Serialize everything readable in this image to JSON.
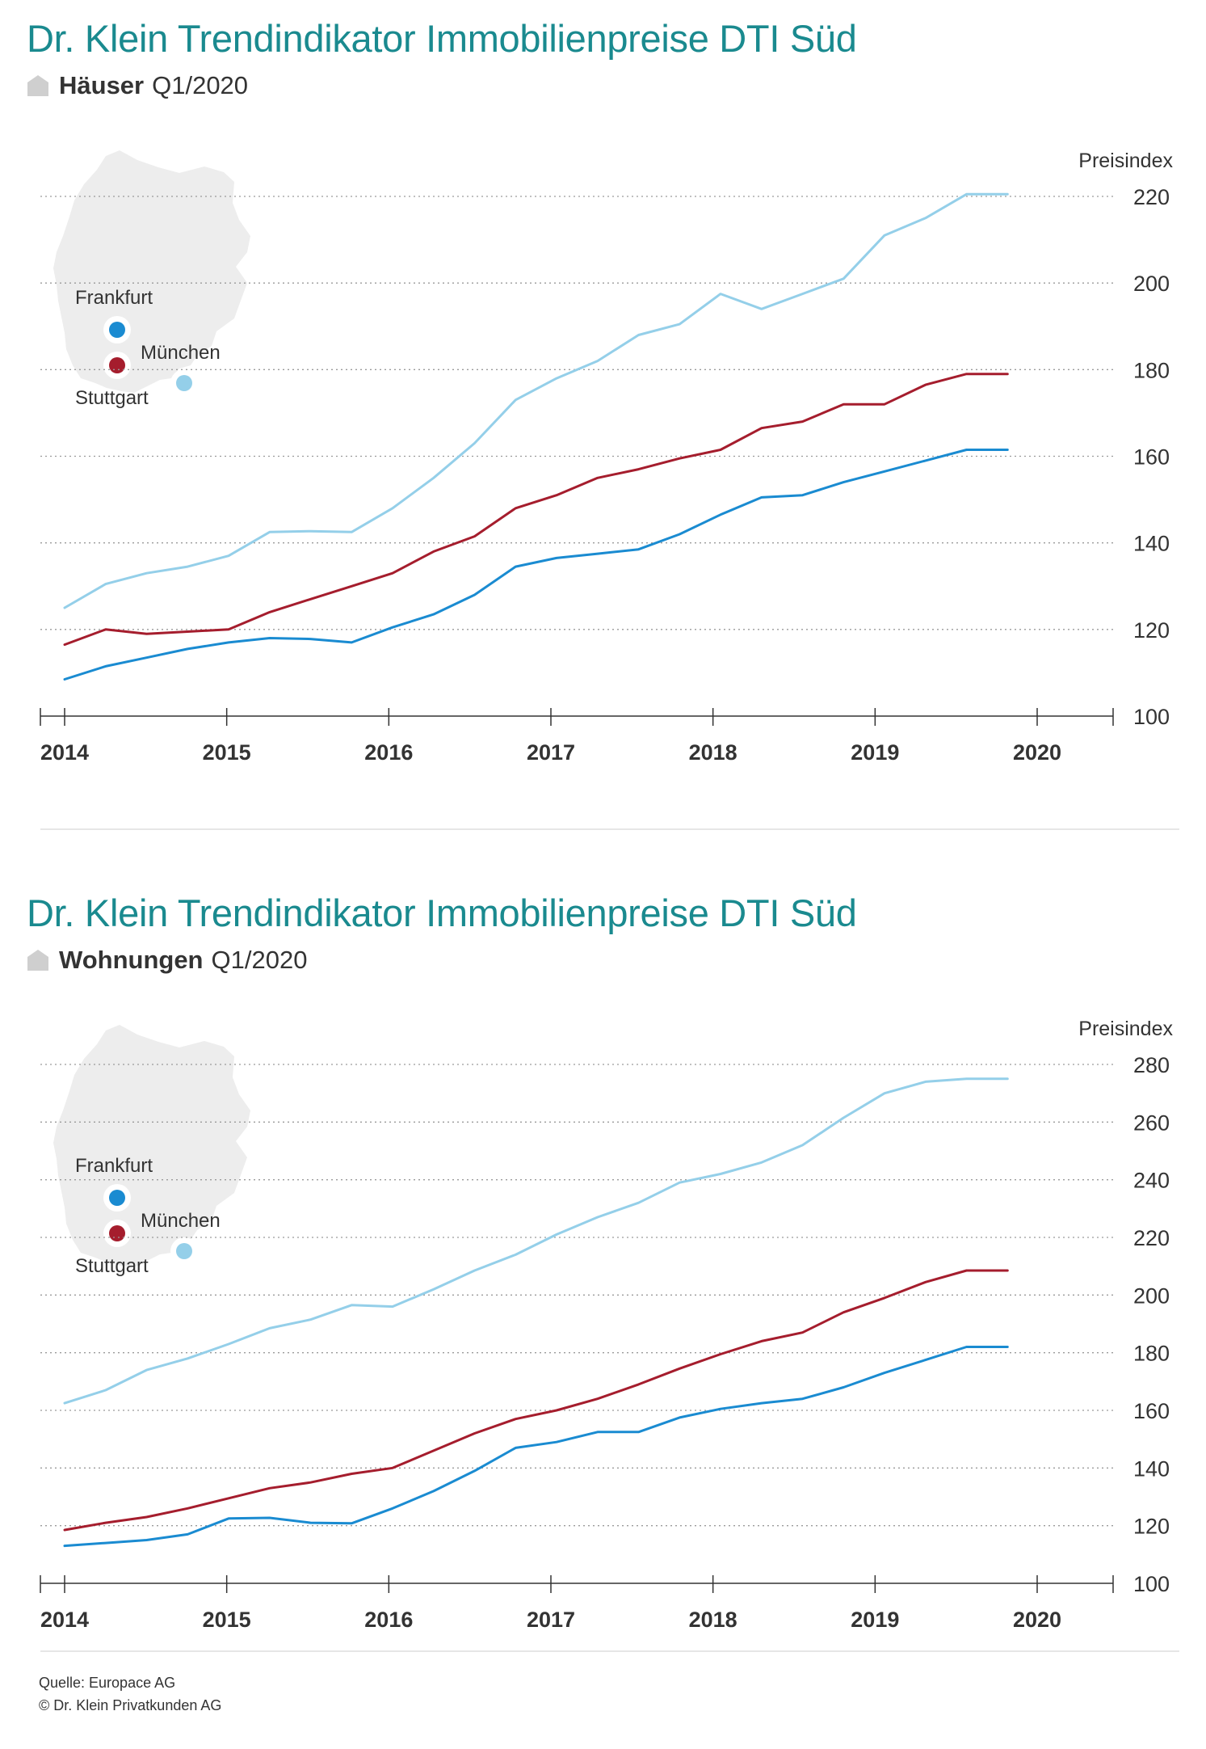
{
  "colors": {
    "title": "#1a8a8f",
    "frankfurt": "#1a8bd1",
    "muenchen": "#a51d2d",
    "stuttgart": "#94cfe9",
    "map": "#ededed",
    "grid": "#9a9a9a"
  },
  "charts": [
    {
      "title": "Dr. Klein Trendindikator Immobilienpreise DTI Süd",
      "subtitle_bold": "Häuser",
      "subtitle_rest": "Q1/2020",
      "house_icon": "house-icon",
      "map_labels": {
        "frankfurt": "Frankfurt",
        "muenchen": "München",
        "stuttgart": "Stuttgart"
      }
    },
    {
      "title": "Dr. Klein Trendindikator Immobilienpreise DTI Süd",
      "subtitle_bold": "Wohnungen",
      "subtitle_rest": "Q1/2020",
      "house_icon": "house-icon",
      "map_labels": {
        "frankfurt": "Frankfurt",
        "muenchen": "München",
        "stuttgart": "Stuttgart"
      }
    }
  ],
  "chart_data": [
    {
      "type": "line",
      "title": "Dr. Klein Trendindikator Immobilienpreise DTI Süd",
      "subtitle": "Häuser Q1/2020",
      "ylabel": "Preisindex",
      "ylim": [
        100,
        220
      ],
      "yticks": [
        "100",
        "120",
        "140",
        "160",
        "180",
        "200",
        "220"
      ],
      "xticks": [
        "2014",
        "2015",
        "2016",
        "2017",
        "2018",
        "2019",
        "2020"
      ],
      "xlim": [
        2014.0,
        2020.5
      ],
      "grid": true,
      "x": [
        2014.0,
        2014.25,
        2014.5,
        2014.75,
        2015.0,
        2015.25,
        2015.5,
        2015.75,
        2016.0,
        2016.25,
        2016.5,
        2016.75,
        2017.0,
        2017.25,
        2017.5,
        2017.75,
        2018.0,
        2018.25,
        2018.5,
        2018.75,
        2019.0,
        2019.25,
        2019.5,
        2019.75,
        2020.0
      ],
      "series": [
        {
          "name": "Frankfurt",
          "color": "#1a8bd1",
          "values": [
            108.5,
            111.5,
            113.5,
            115.5,
            117,
            118,
            117.8,
            117,
            120.5,
            123.5,
            128,
            134.5,
            136.5,
            137.5,
            138.5,
            142,
            146.5,
            150.5,
            151,
            154,
            156.5,
            159,
            161.5,
            161.5,
            161.5
          ]
        },
        {
          "name": "München",
          "color": "#a51d2d",
          "values": [
            116.5,
            120,
            119,
            119.5,
            120,
            124,
            127,
            130,
            133,
            138,
            141.5,
            148,
            151,
            155,
            157,
            159.5,
            161.5,
            166.5,
            168,
            172,
            172,
            176.5,
            179,
            179,
            179
          ]
        },
        {
          "name": "Stuttgart",
          "color": "#94cfe9",
          "values": [
            125,
            130.5,
            133,
            134.5,
            137,
            142.5,
            142.7,
            142.5,
            148,
            155,
            163,
            173,
            178,
            182,
            188,
            190.5,
            197.5,
            194,
            197.5,
            201,
            211,
            215,
            220.5,
            220.5,
            220.5
          ]
        }
      ]
    },
    {
      "type": "line",
      "title": "Dr. Klein Trendindikator Immobilienpreise DTI Süd",
      "subtitle": "Wohnungen Q1/2020",
      "ylabel": "Preisindex",
      "ylim": [
        100,
        280
      ],
      "yticks": [
        "100",
        "120",
        "140",
        "160",
        "180",
        "200",
        "220",
        "240",
        "260",
        "280"
      ],
      "xticks": [
        "2014",
        "2015",
        "2016",
        "2017",
        "2018",
        "2019",
        "2020"
      ],
      "xlim": [
        2014.0,
        2020.5
      ],
      "grid": true,
      "x": [
        2014.0,
        2014.25,
        2014.5,
        2014.75,
        2015.0,
        2015.25,
        2015.5,
        2015.75,
        2016.0,
        2016.25,
        2016.5,
        2016.75,
        2017.0,
        2017.25,
        2017.5,
        2017.75,
        2018.0,
        2018.25,
        2018.5,
        2018.75,
        2019.0,
        2019.25,
        2019.5,
        2019.75,
        2020.0
      ],
      "series": [
        {
          "name": "Frankfurt",
          "color": "#1a8bd1",
          "values": [
            113,
            114,
            115,
            117,
            122.5,
            122.7,
            121,
            120.8,
            126,
            132,
            139,
            147,
            149,
            152.5,
            152.5,
            157.5,
            160.5,
            162.5,
            164,
            168,
            173,
            177.5,
            182,
            182,
            182
          ]
        },
        {
          "name": "München",
          "color": "#a51d2d",
          "values": [
            118.5,
            121,
            123,
            126,
            129.5,
            133,
            135,
            138,
            140,
            146,
            152,
            157,
            160,
            164,
            169,
            174.5,
            179.5,
            184,
            187,
            194,
            199,
            204.5,
            208.5,
            208.5,
            208.5
          ]
        },
        {
          "name": "Stuttgart",
          "color": "#94cfe9",
          "values": [
            162.5,
            167,
            174,
            178,
            183,
            188.5,
            191.5,
            196.5,
            196,
            202,
            208.5,
            214,
            221,
            227,
            232,
            239,
            242,
            246,
            252,
            261.5,
            270,
            274,
            275,
            275,
            275
          ]
        }
      ]
    }
  ],
  "source": {
    "line1": "Quelle: Europace AG",
    "line2": "© Dr. Klein Privatkunden AG"
  }
}
